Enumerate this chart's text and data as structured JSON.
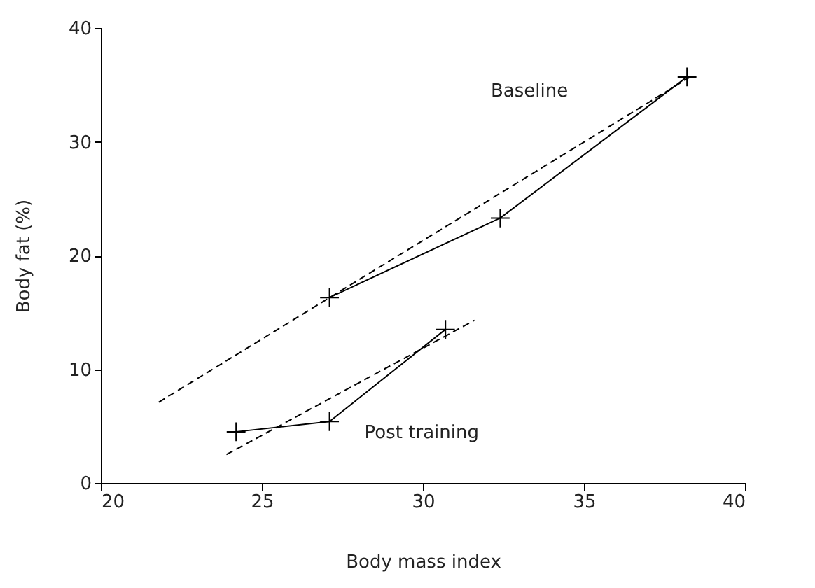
{
  "chart_data": {
    "type": "line",
    "xlabel": "Body mass index",
    "ylabel": "Body fat (%)",
    "xlim": [
      20,
      40
    ],
    "ylim": [
      0,
      40
    ],
    "xticks": [
      20,
      25,
      30,
      35,
      40
    ],
    "yticks": [
      0,
      10,
      20,
      30,
      40
    ],
    "grid": false,
    "series": [
      {
        "name": "Baseline",
        "color": "#000000",
        "x": [
          27.1,
          32.4,
          38.2
        ],
        "values": [
          16.3,
          23.3,
          35.7
        ],
        "marker": "cross",
        "line_style": "solid"
      },
      {
        "name": "Post training",
        "color": "#000000",
        "x": [
          24.2,
          27.1,
          30.7
        ],
        "values": [
          4.5,
          5.4,
          13.5
        ],
        "marker": "cross",
        "line_style": "solid"
      },
      {
        "color": "#000000",
        "x": [
          21.8,
          38.3
        ],
        "values": [
          7.1,
          35.7
        ],
        "marker": "none",
        "line_style": "dashed"
      },
      {
        "color": "#000000",
        "x": [
          23.9,
          31.6
        ],
        "values": [
          2.5,
          14.3
        ],
        "marker": "none",
        "line_style": "dashed"
      }
    ]
  }
}
